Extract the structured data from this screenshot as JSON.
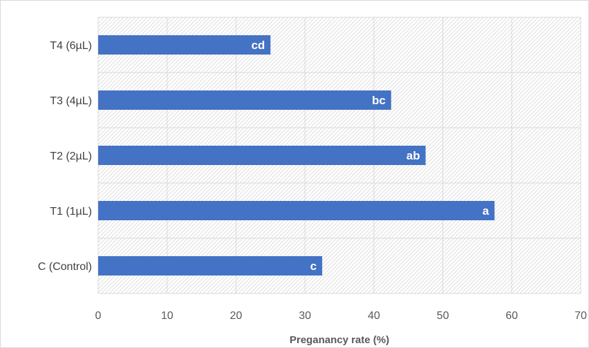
{
  "chart_data": {
    "type": "bar",
    "orientation": "horizontal",
    "categories": [
      "C (Control)",
      "T1 (1µL)",
      "T2 (2µL)",
      "T3 (4µL)",
      "T4 (6µL)"
    ],
    "values": [
      32.5,
      57.5,
      47.5,
      42.5,
      25
    ],
    "bar_labels": [
      "c",
      "a",
      "ab",
      "bc",
      "cd"
    ],
    "title": "",
    "xlabel": "Preganancy rate (%)",
    "ylabel": "",
    "xlim": [
      0,
      70
    ],
    "xticks": [
      "0",
      "10",
      "20",
      "30",
      "40",
      "50",
      "60",
      "70"
    ],
    "grid": true,
    "legend": "none",
    "bar_color": "#4472c4",
    "plot_background": "hatched-light-gray"
  }
}
